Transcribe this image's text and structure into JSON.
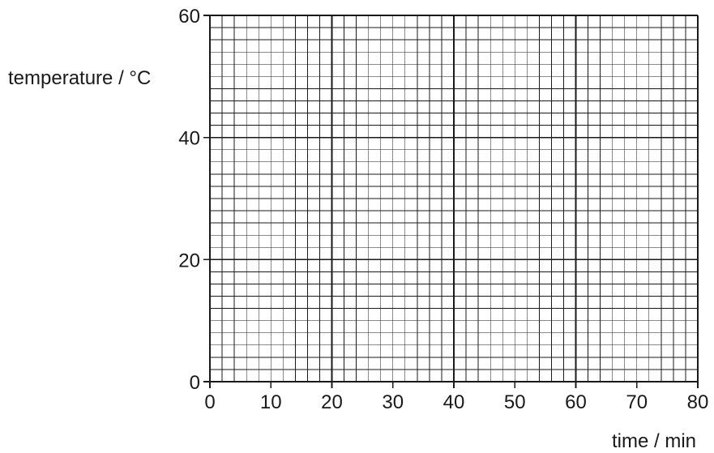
{
  "chart_data": {
    "type": "scatter",
    "title": "",
    "xlabel": "time / min",
    "ylabel": "temperature / °C",
    "xlim": [
      0,
      80
    ],
    "ylim": [
      0,
      60
    ],
    "x_ticks": [
      0,
      10,
      20,
      30,
      40,
      50,
      60,
      70,
      80
    ],
    "y_ticks": [
      0,
      20,
      40,
      60
    ],
    "x_tick_labels": [
      "0",
      "10",
      "20",
      "30",
      "40",
      "50",
      "60",
      "70",
      "80"
    ],
    "y_tick_labels": [
      "0",
      "20",
      "40",
      "60"
    ],
    "grid": true,
    "grid_minor_step_x": 2,
    "grid_minor_step_y": 2,
    "grid_major_step_x": 20,
    "grid_major_step_y": 20,
    "series": [],
    "colors": {
      "grid_line": "#1a1a1a",
      "text": "#1a1a1a",
      "background": "#ffffff"
    }
  }
}
